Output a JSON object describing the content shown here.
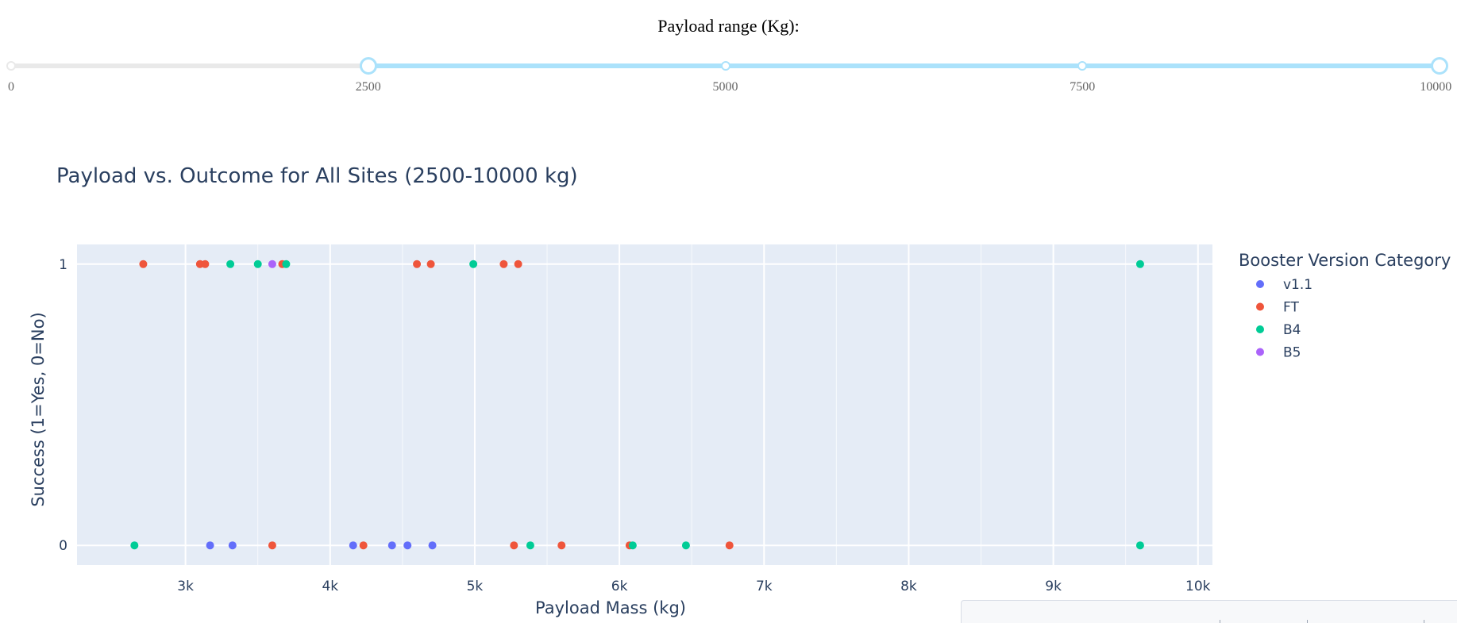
{
  "slider": {
    "label": "Payload range (Kg):",
    "min": 0,
    "max": 10000,
    "value": [
      2500,
      10000
    ],
    "marks": [
      "0",
      "2500",
      "5000",
      "7500",
      "10000"
    ],
    "colors": {
      "rail": "#e9e9e9",
      "track": "#abe2fb"
    }
  },
  "chart_data": {
    "type": "scatter",
    "title": "Payload vs. Outcome for All Sites (2500-10000 kg)",
    "xlabel": "Payload Mass (kg)",
    "ylabel": "Success (1=Yes, 0=No)",
    "xlim": [
      2250,
      10100
    ],
    "ylim": [
      -0.07,
      1.07
    ],
    "xticks": [
      3000,
      4000,
      5000,
      6000,
      7000,
      8000,
      9000,
      10000
    ],
    "xtick_labels": [
      "3k",
      "4k",
      "5k",
      "6k",
      "7k",
      "8k",
      "9k",
      "10k"
    ],
    "yticks": [
      0,
      1
    ],
    "ytick_labels": [
      "0",
      "1"
    ],
    "grid": true,
    "legend": {
      "title": "Booster Version Category",
      "position": "right"
    },
    "background": "#e5ecf6",
    "series": [
      {
        "name": "v1.1",
        "color": "#636efa",
        "points": [
          {
            "x": 3170,
            "y": 0
          },
          {
            "x": 3325,
            "y": 0
          },
          {
            "x": 4159,
            "y": 0
          },
          {
            "x": 4428,
            "y": 0
          },
          {
            "x": 4535,
            "y": 0
          },
          {
            "x": 4707,
            "y": 0
          }
        ]
      },
      {
        "name": "FT",
        "color": "#ef553b",
        "points": [
          {
            "x": 2708,
            "y": 1
          },
          {
            "x": 3100,
            "y": 1
          },
          {
            "x": 3136,
            "y": 1
          },
          {
            "x": 3669,
            "y": 1
          },
          {
            "x": 4600,
            "y": 1
          },
          {
            "x": 4696,
            "y": 1
          },
          {
            "x": 5200,
            "y": 1
          },
          {
            "x": 5300,
            "y": 1
          },
          {
            "x": 3600,
            "y": 0
          },
          {
            "x": 4230,
            "y": 0
          },
          {
            "x": 5271,
            "y": 0
          },
          {
            "x": 5600,
            "y": 0
          },
          {
            "x": 6070,
            "y": 0
          },
          {
            "x": 6761,
            "y": 0
          }
        ]
      },
      {
        "name": "B4",
        "color": "#00cc96",
        "points": [
          {
            "x": 3310,
            "y": 1
          },
          {
            "x": 3500,
            "y": 1
          },
          {
            "x": 3696,
            "y": 1
          },
          {
            "x": 4990,
            "y": 1
          },
          {
            "x": 9600,
            "y": 1
          },
          {
            "x": 2647,
            "y": 0
          },
          {
            "x": 5384,
            "y": 0
          },
          {
            "x": 6092,
            "y": 0
          },
          {
            "x": 6460,
            "y": 0
          },
          {
            "x": 9600,
            "y": 0
          }
        ]
      },
      {
        "name": "B5",
        "color": "#ab63fa",
        "points": [
          {
            "x": 3600,
            "y": 1
          }
        ]
      }
    ]
  }
}
